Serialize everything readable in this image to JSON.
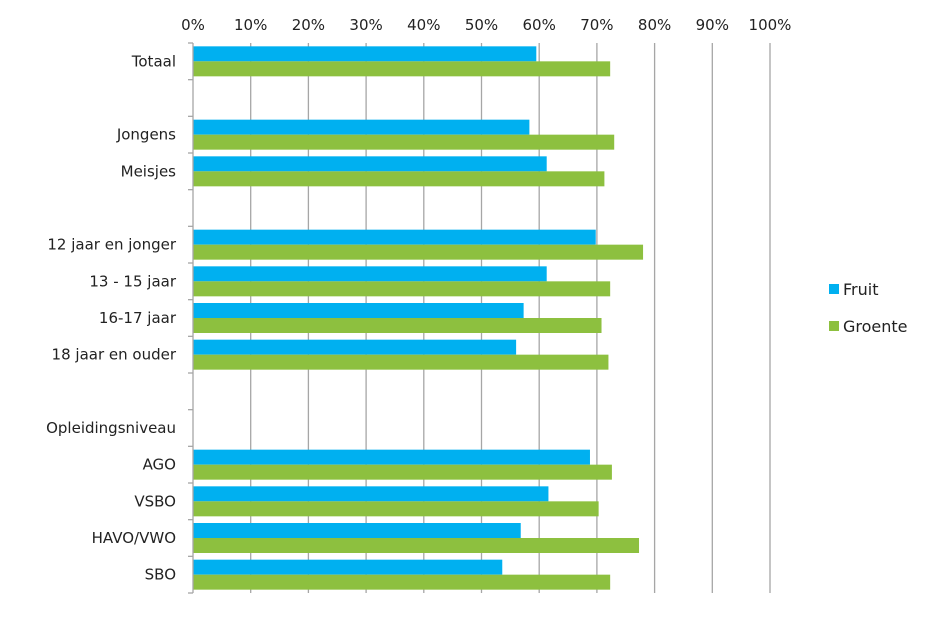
{
  "chart_data": {
    "type": "bar",
    "orientation": "horizontal",
    "title": "",
    "xlabel": "",
    "ylabel": "",
    "xlim": [
      0,
      100
    ],
    "x_ticks": [
      "0%",
      "10%",
      "20%",
      "30%",
      "40%",
      "50%",
      "60%",
      "70%",
      "80%",
      "90%",
      "100%"
    ],
    "x_axis_position": "top",
    "grid": true,
    "legend_position": "right",
    "categories": [
      "Totaal",
      "",
      "Jongens",
      "Meisjes",
      "",
      "12 jaar en jonger",
      "13 - 15 jaar",
      "16-17 jaar",
      "18 jaar  en ouder",
      "",
      "Opleidingsniveau",
      "AGO",
      "VSBO",
      "HAVO/VWO",
      "SBO"
    ],
    "series": [
      {
        "name": "Fruit",
        "color": "#00b0f0",
        "values": [
          59.5,
          null,
          58.3,
          61.3,
          null,
          69.8,
          61.3,
          57.3,
          56.0,
          null,
          null,
          68.8,
          61.6,
          56.8,
          53.6
        ]
      },
      {
        "name": "Groente",
        "color": "#8dc03f",
        "values": [
          72.3,
          null,
          73.0,
          71.3,
          null,
          78.0,
          72.3,
          70.8,
          72.0,
          null,
          null,
          72.6,
          70.3,
          77.3,
          72.3
        ]
      }
    ]
  }
}
